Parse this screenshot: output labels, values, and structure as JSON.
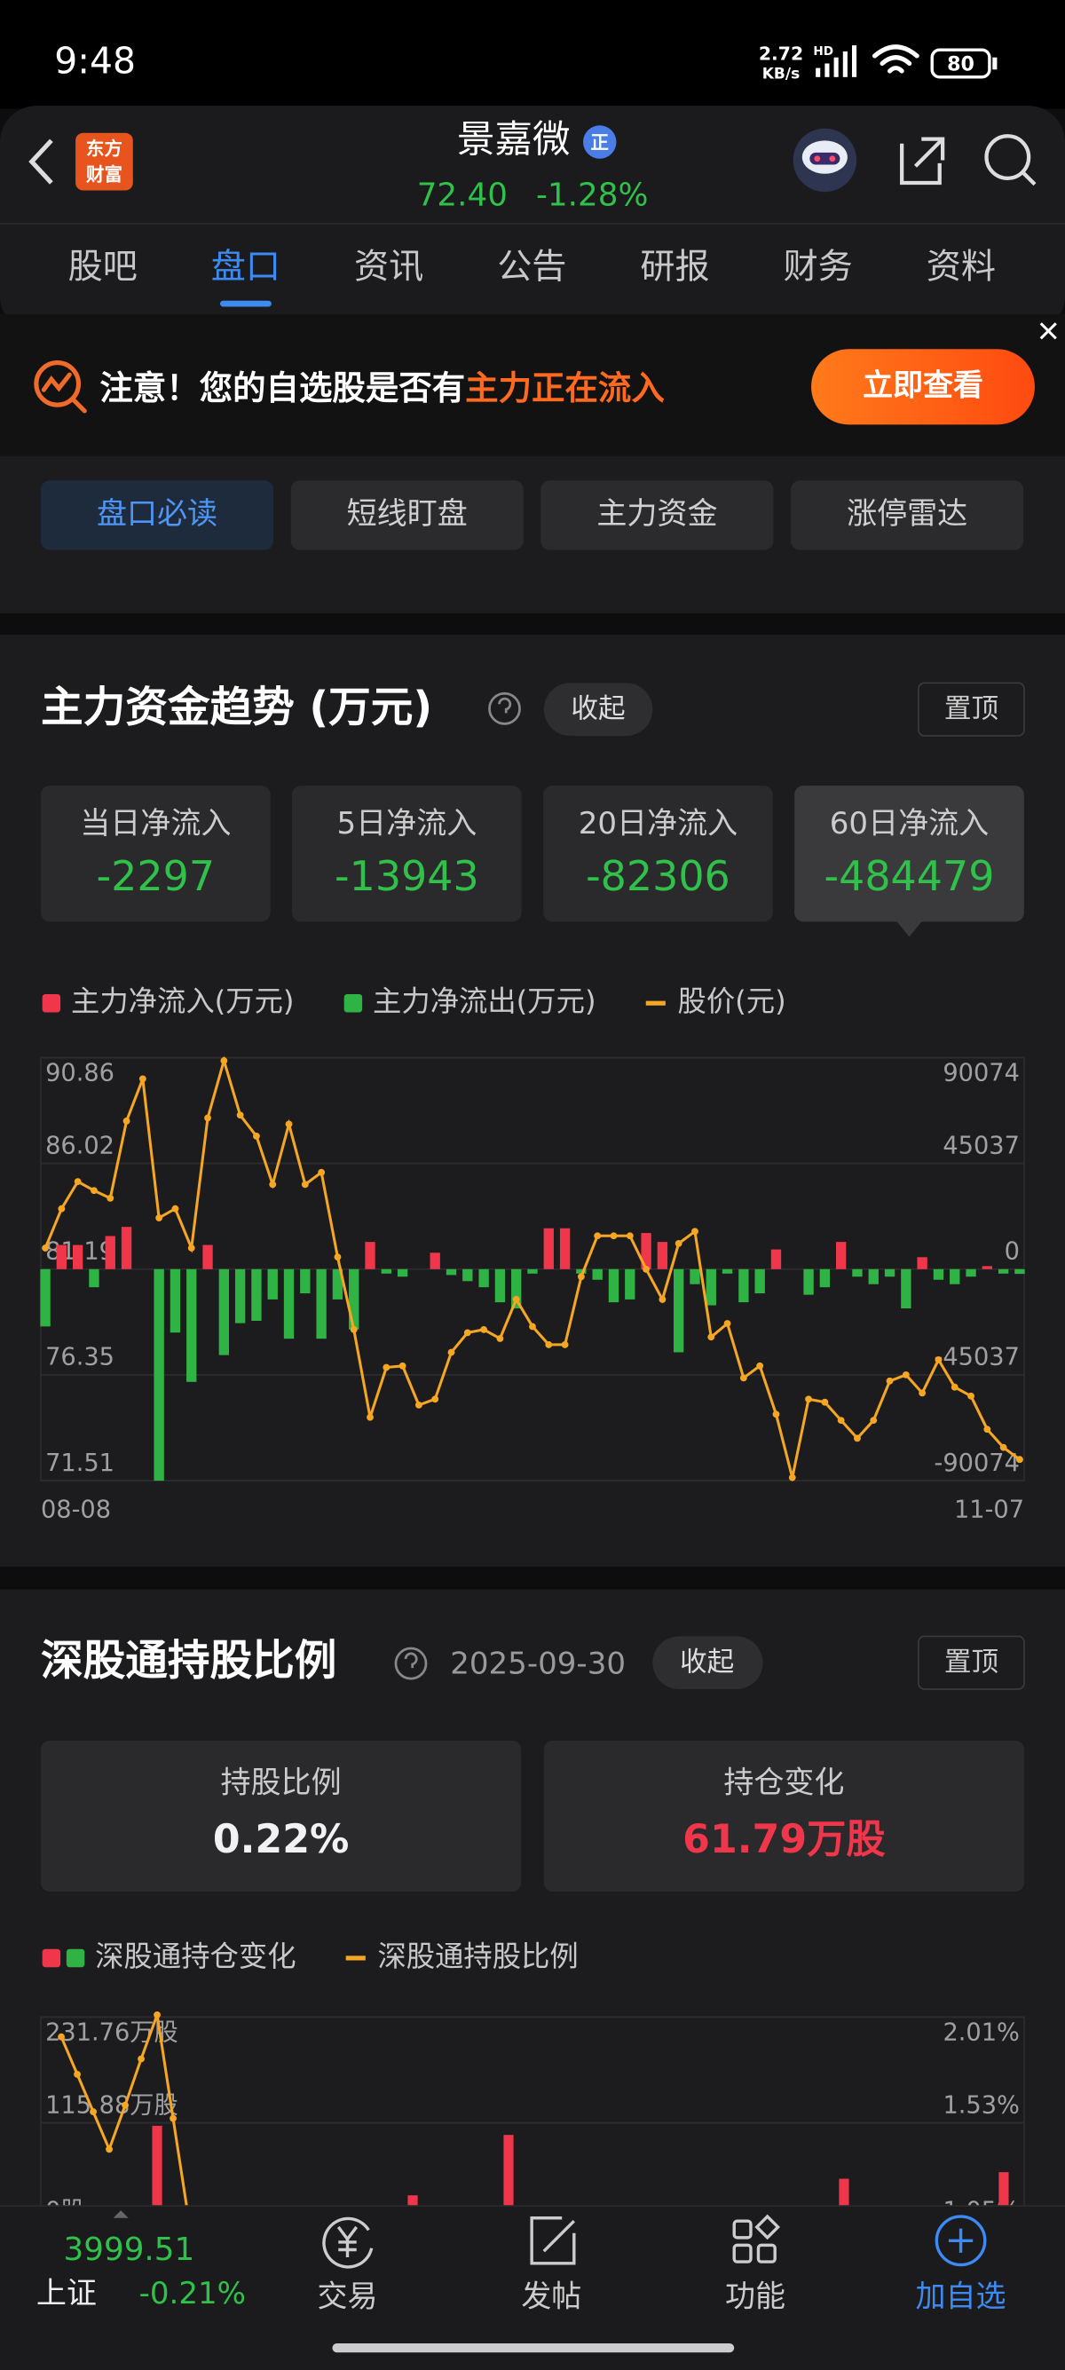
{
  "status_bar": {
    "time": "9:48",
    "net_speed": "2.72",
    "net_unit": "KB/s",
    "network": "HD",
    "battery": "80"
  },
  "header": {
    "logo": [
      "东方",
      "财富"
    ],
    "name": "景嘉微",
    "badge": "正",
    "price": "72.40",
    "change": "-1.28%"
  },
  "tabs": [
    "股吧",
    "盘口",
    "资讯",
    "公告",
    "研报",
    "财务",
    "资料"
  ],
  "active_tab": 1,
  "banner": {
    "text": "注意！您的自选股是否有",
    "highlight": "主力正在流入",
    "button": "立即查看"
  },
  "sub_tabs": [
    "盘口必读",
    "短线盯盘",
    "主力资金",
    "涨停雷达"
  ],
  "active_sub_tab": 0,
  "fund_trend": {
    "title": "主力资金趋势 (万元)",
    "collapse": "收起",
    "pin": "置顶",
    "selected_stat": 3,
    "stats": [
      {
        "label": "当日净流入",
        "value": -2297
      },
      {
        "label": "5日净流入",
        "value": -13943
      },
      {
        "label": "20日净流入",
        "value": -82306
      },
      {
        "label": "60日净流入",
        "value": -484479
      }
    ]
  },
  "hk_connect": {
    "title": "深股通持股比例",
    "date": "2025-09-30",
    "collapse": "收起",
    "pin": "置顶",
    "stats": [
      {
        "label": "持股比例",
        "value": "0.22%",
        "color": "#f2f2f2"
      },
      {
        "label": "持仓变化",
        "value": "61.79万股",
        "color": "#f0364a"
      }
    ]
  },
  "chart_data": [
    {
      "type": "combo",
      "grid": true,
      "categories": [
        "08-08",
        null,
        null,
        null,
        null,
        null,
        null,
        null,
        null,
        null,
        null,
        null,
        null,
        null,
        null,
        null,
        null,
        null,
        null,
        null,
        null,
        null,
        null,
        null,
        null,
        null,
        null,
        null,
        null,
        null,
        null,
        null,
        null,
        null,
        null,
        null,
        null,
        null,
        null,
        null,
        null,
        null,
        null,
        null,
        null,
        null,
        null,
        null,
        null,
        null,
        null,
        null,
        null,
        null,
        null,
        null,
        null,
        null,
        null,
        null,
        "11-07"
      ],
      "series": [
        {
          "name": "主力净流入(万元)",
          "type": "bar",
          "axis": "y2",
          "color": "#f0364a",
          "values": [
            null,
            10300,
            10300,
            null,
            14100,
            18000,
            0,
            null,
            null,
            null,
            10300,
            null,
            null,
            null,
            null,
            null,
            null,
            null,
            null,
            null,
            11600,
            null,
            null,
            0,
            7000,
            null,
            null,
            null,
            null,
            null,
            null,
            17400,
            17400,
            null,
            null,
            null,
            null,
            15400,
            11600,
            null,
            null,
            null,
            null,
            null,
            null,
            8400,
            0,
            null,
            null,
            11600,
            null,
            null,
            null,
            null,
            5100,
            null,
            null,
            null,
            1300,
            null,
            null
          ]
        },
        {
          "name": "主力净流出(万元)",
          "type": "bar",
          "axis": "y2",
          "color": "#2fb344",
          "values": [
            -24400,
            null,
            null,
            -7700,
            null,
            null,
            null,
            -90074,
            -27000,
            -48000,
            null,
            -36600,
            -23000,
            -22000,
            -12900,
            -29600,
            -10300,
            -29600,
            -12900,
            -25700,
            null,
            -1900,
            -3200,
            null,
            null,
            -2500,
            -5100,
            -7700,
            -14100,
            -16700,
            -1900,
            null,
            null,
            -1900,
            -4500,
            -14100,
            -12900,
            null,
            null,
            -35400,
            -6400,
            -15400,
            -1900,
            -14100,
            -10300,
            null,
            null,
            -10900,
            -7700,
            null,
            -3200,
            -6400,
            -3200,
            -16700,
            null,
            -4500,
            -6400,
            -3200,
            null,
            -1900,
            -2000
          ]
        },
        {
          "name": "股价(元)",
          "type": "line",
          "axis": "y",
          "color": "#f5a623",
          "values": [
            82.15,
            83.95,
            85.19,
            84.78,
            84.43,
            87.96,
            89.89,
            83.53,
            83.95,
            82.15,
            88.1,
            90.72,
            88.23,
            87.27,
            85.06,
            87.82,
            85.06,
            85.61,
            81.74,
            78.42,
            74.41,
            76.69,
            76.76,
            74.97,
            75.24,
            77.38,
            78.28,
            78.42,
            78.01,
            79.8,
            78.56,
            77.73,
            77.73,
            80.84,
            82.71,
            82.71,
            82.71,
            81.18,
            79.8,
            82.36,
            82.91,
            78.08,
            78.7,
            76.21,
            76.76,
            74.55,
            71.65,
            75.24,
            75.1,
            74.27,
            73.45,
            74.27,
            76.07,
            76.35,
            75.52,
            77.04,
            75.79,
            75.38,
            73.86,
            73.03,
            72.48
          ]
        }
      ],
      "ylim": [
        71.51,
        90.86
      ],
      "yticks": [
        90.86,
        86.02,
        81.19,
        76.35,
        71.51
      ],
      "y2lim": [
        -90074,
        90074
      ],
      "y2ticks": [
        90074,
        45037,
        0,
        -45037,
        -90074
      ]
    },
    {
      "type": "combo",
      "grid": true,
      "categories": [
        null,
        null,
        null,
        null,
        null,
        null,
        null,
        null,
        null,
        null,
        null,
        null,
        null,
        null,
        null,
        null,
        null,
        null,
        null,
        null,
        null,
        null,
        null,
        null,
        null,
        null,
        null,
        null,
        null,
        null,
        null,
        null,
        null,
        null,
        null,
        null,
        null,
        null,
        null,
        null,
        null,
        null,
        null,
        null,
        null,
        null,
        null,
        null,
        null,
        null,
        null,
        null,
        null,
        null,
        null,
        null,
        null,
        null,
        null,
        null,
        null,
        null
      ],
      "series": [
        {
          "name": "深股通持仓变化",
          "type": "bar",
          "axis": "y",
          "color": "#f0364a",
          "negative_color": "#2fb344",
          "values": [
            null,
            null,
            null,
            null,
            null,
            null,
            null,
            112.6,
            null,
            null,
            null,
            null,
            null,
            null,
            null,
            null,
            null,
            null,
            null,
            null,
            null,
            null,
            null,
            36.4,
            null,
            null,
            null,
            null,
            null,
            102.6,
            null,
            null,
            null,
            null,
            null,
            null,
            null,
            null,
            null,
            null,
            null,
            null,
            null,
            null,
            null,
            null,
            null,
            null,
            null,
            null,
            54.6,
            null,
            null,
            null,
            null,
            null,
            null,
            null,
            null,
            null,
            61.79,
            null
          ]
        },
        {
          "name": "深股通持股比例",
          "type": "line",
          "axis": "y2",
          "color": "#f5a623",
          "values": [
            null,
            1.92,
            1.75,
            1.58,
            1.41,
            1.61,
            1.82,
            2.02,
            1.55,
            1.08,
            null,
            null,
            null,
            null,
            null,
            null,
            null,
            null,
            null,
            null,
            null,
            null,
            null,
            null,
            null,
            null,
            null,
            null,
            null,
            null,
            null,
            null,
            null,
            null,
            null,
            null,
            null,
            null,
            null,
            null,
            null,
            null,
            null,
            null,
            null,
            null,
            null,
            null,
            null,
            null,
            null,
            null,
            null,
            null,
            null,
            null,
            null,
            null,
            null,
            null,
            null,
            null
          ]
        }
      ],
      "ylim": [
        -115.88,
        231.76
      ],
      "yticks": [
        {
          "value": 231.76,
          "label": "231.76万股"
        },
        {
          "value": 115.88,
          "label": "115.88万股"
        },
        {
          "value": 0,
          "label": "0股"
        }
      ],
      "y2lim": [
        0.57,
        2.01
      ],
      "y2ticks": [
        {
          "value": 2.01,
          "label": "2.01%"
        },
        {
          "value": 1.53,
          "label": "1.53%"
        },
        {
          "value": 1.05,
          "label": "1.05%"
        }
      ]
    }
  ],
  "bottom_nav": {
    "index_value": "3999.51",
    "index_name": "上证",
    "index_change": "-0.21%",
    "items": [
      "交易",
      "发帖",
      "功能",
      "加自选"
    ],
    "highlight_item": 3
  }
}
